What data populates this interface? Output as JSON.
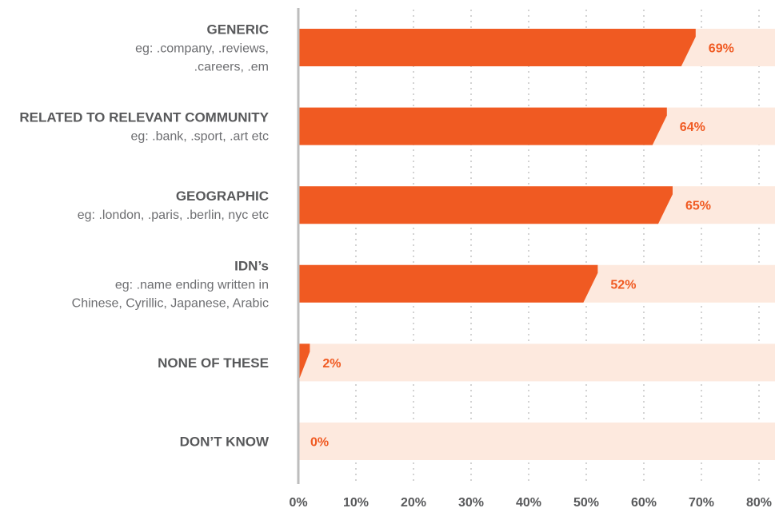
{
  "chart_data": {
    "type": "bar",
    "orientation": "horizontal",
    "categories": [
      {
        "title": "GENERIC",
        "subtitle": [
          "eg: .company, .reviews,",
          ".careers, .em"
        ]
      },
      {
        "title": "RELATED TO RELEVANT COMMUNITY",
        "subtitle": [
          "eg: .bank, .sport, .art etc"
        ]
      },
      {
        "title": "GEOGRAPHIC",
        "subtitle": [
          "eg: .london, .paris, .berlin, nyc etc"
        ]
      },
      {
        "title": "IDN’s",
        "subtitle": [
          "eg: .name ending written in",
          "Chinese, Cyrillic, Japanese, Arabic"
        ]
      },
      {
        "title": "NONE OF THESE",
        "subtitle": []
      },
      {
        "title": "DON’T KNOW",
        "subtitle": []
      }
    ],
    "values": [
      69,
      64,
      65,
      52,
      2,
      0
    ],
    "value_labels": [
      "69%",
      "64%",
      "65%",
      "52%",
      "2%",
      "0%"
    ],
    "xlim": [
      0,
      82
    ],
    "xticks": [
      0,
      10,
      20,
      30,
      40,
      50,
      60,
      70,
      80
    ],
    "xtick_labels": [
      "0%",
      "10%",
      "20%",
      "30%",
      "40%",
      "50%",
      "60%",
      "70%",
      "80%"
    ],
    "grid": true,
    "colors": {
      "bar": "#f05a22",
      "track": "#fde9de",
      "label": "#f05a22",
      "grid": "#c8c8c8",
      "axis": "#bdbdbd"
    }
  }
}
